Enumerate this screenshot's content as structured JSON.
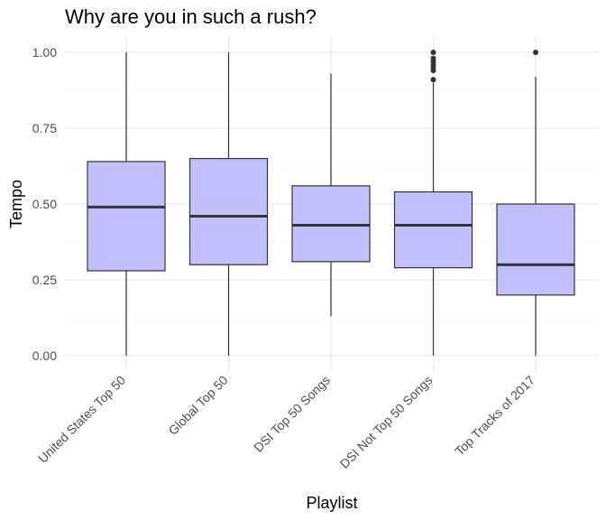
{
  "chart_data": {
    "type": "boxplot",
    "title": "Why are you in such a rush?",
    "xlabel": "Playlist",
    "ylabel": "Tempo",
    "ylim": [
      -0.04,
      1.04
    ],
    "yticks": [
      "0.00",
      "0.25",
      "0.50",
      "0.75",
      "1.00"
    ],
    "ytick_values": [
      0,
      0.25,
      0.5,
      0.75,
      1.0
    ],
    "grid": true,
    "colors": {
      "box_fill": "#c2c0ff",
      "box_stroke": "#333333",
      "grid_major": "#ebebeb",
      "grid_minor": "#f5f5f5"
    },
    "categories": [
      "United States Top 50",
      "Global Top 50",
      "DSI Top 50 Songs",
      "DSI Not Top 50 Songs",
      "Top Tracks of 2017"
    ],
    "boxes": [
      {
        "category": "United States Top 50",
        "min": 0.0,
        "q1": 0.28,
        "median": 0.49,
        "q3": 0.64,
        "max": 1.0,
        "outliers": []
      },
      {
        "category": "Global Top 50",
        "min": 0.0,
        "q1": 0.3,
        "median": 0.46,
        "q3": 0.65,
        "max": 1.0,
        "outliers": []
      },
      {
        "category": "DSI Top 50 Songs",
        "min": 0.13,
        "q1": 0.31,
        "median": 0.43,
        "q3": 0.56,
        "max": 0.93,
        "outliers": []
      },
      {
        "category": "DSI Not Top 50 Songs",
        "min": 0.0,
        "q1": 0.29,
        "median": 0.43,
        "q3": 0.54,
        "max": 0.9,
        "outliers": [
          0.91,
          0.94,
          0.95,
          0.96,
          0.97,
          0.98,
          1.0
        ]
      },
      {
        "category": "Top Tracks of 2017",
        "min": 0.0,
        "q1": 0.2,
        "median": 0.3,
        "q3": 0.5,
        "max": 0.92,
        "outliers": [
          1.0
        ]
      }
    ]
  }
}
